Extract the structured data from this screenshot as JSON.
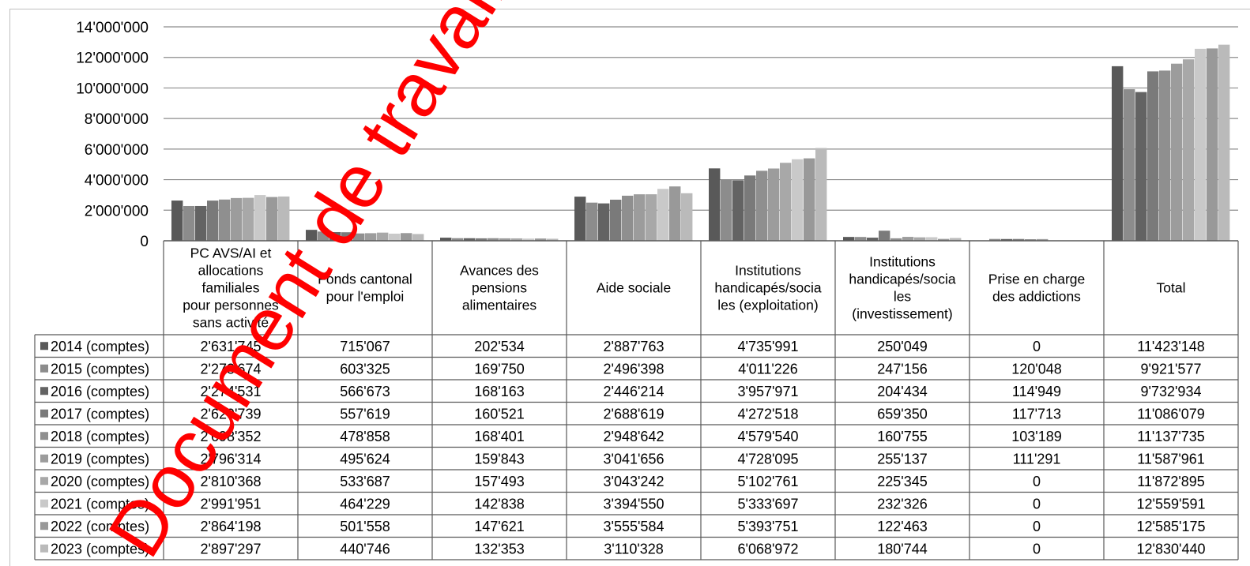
{
  "chart_data": {
    "type": "bar",
    "title": "",
    "xlabel": "",
    "ylabel": "",
    "ylim": [
      0,
      14000000
    ],
    "y_ticks": [
      "14'000'000",
      "12'000'000",
      "10'000'000",
      "8'000'000",
      "6'000'000",
      "4'000'000",
      "2'000'000",
      "0"
    ],
    "grid": true,
    "legend_placement": "left, inside data table",
    "categories": [
      [
        "PC AVS/AI et",
        "allocations",
        "familiales",
        "pour personnes",
        "sans activité"
      ],
      [
        "Fonds cantonal",
        "pour l'emploi"
      ],
      [
        "Avances des",
        "pensions",
        "alimentaires"
      ],
      [
        "Aide sociale"
      ],
      [
        "Institutions",
        "handicapés/socia",
        "les (exploitation)"
      ],
      [
        "Institutions",
        "handicapés/socia",
        "les",
        "(investissement)"
      ],
      [
        "Prise en charge",
        "des addictions"
      ],
      [
        "Total"
      ]
    ],
    "series": [
      {
        "name": "2014 (comptes)",
        "color": "#595959",
        "values": [
          2631745,
          715067,
          202534,
          2887763,
          4735991,
          250049,
          0,
          11423148
        ],
        "labels": [
          "2'631'745",
          "715'067",
          "202'534",
          "2'887'763",
          "4'735'991",
          "250'049",
          "0",
          "11'423'148"
        ]
      },
      {
        "name": "2015 (comptes)",
        "color": "#8c8c8c",
        "values": [
          2273674,
          603325,
          169750,
          2496398,
          4011226,
          247156,
          120048,
          9921577
        ],
        "labels": [
          "2'273'674",
          "603'325",
          "169'750",
          "2'496'398",
          "4'011'226",
          "247'156",
          "120'048",
          "9'921'577"
        ]
      },
      {
        "name": "2016 (comptes)",
        "color": "#636363",
        "values": [
          2274531,
          566673,
          168163,
          2446214,
          3957971,
          204434,
          114949,
          9732934
        ],
        "labels": [
          "2'274'531",
          "566'673",
          "168'163",
          "2'446'214",
          "3'957'971",
          "204'434",
          "114'949",
          "9'732'934"
        ]
      },
      {
        "name": "2017 (comptes)",
        "color": "#7a7a7a",
        "values": [
          2629739,
          557619,
          160521,
          2688619,
          4272518,
          659350,
          117713,
          11086079
        ],
        "labels": [
          "2'629'739",
          "557'619",
          "160'521",
          "2'688'619",
          "4'272'518",
          "659'350",
          "117'713",
          "11'086'079"
        ]
      },
      {
        "name": "2018 (comptes)",
        "color": "#8f8f8f",
        "values": [
          2698352,
          478858,
          168401,
          2948642,
          4579540,
          160755,
          103189,
          11137735
        ],
        "labels": [
          "2'698'352",
          "478'858",
          "168'401",
          "2'948'642",
          "4'579'540",
          "160'755",
          "103'189",
          "11'137'735"
        ]
      },
      {
        "name": "2019 (comptes)",
        "color": "#9c9c9c",
        "values": [
          2796314,
          495624,
          159843,
          3041656,
          4728095,
          255137,
          111291,
          11587961
        ],
        "labels": [
          "2'796'314",
          "495'624",
          "159'843",
          "3'041'656",
          "4'728'095",
          "255'137",
          "111'291",
          "11'587'961"
        ]
      },
      {
        "name": "2020 (comptes)",
        "color": "#a8a8a8",
        "values": [
          2810368,
          533687,
          157493,
          3043242,
          5102761,
          225345,
          0,
          11872895
        ],
        "labels": [
          "2'810'368",
          "533'687",
          "157'493",
          "3'043'242",
          "5'102'761",
          "225'345",
          "0",
          "11'872'895"
        ]
      },
      {
        "name": "2021 (comptes)",
        "color": "#c9c9c9",
        "values": [
          2991951,
          464229,
          142838,
          3394550,
          5333697,
          232326,
          0,
          12559591
        ],
        "labels": [
          "2'991'951",
          "464'229",
          "142'838",
          "3'394'550",
          "5'333'697",
          "232'326",
          "0",
          "12'559'591"
        ]
      },
      {
        "name": "2022 (comptes)",
        "color": "#999999",
        "values": [
          2864198,
          501558,
          147621,
          3555584,
          5393751,
          122463,
          0,
          12585175
        ],
        "labels": [
          "2'864'198",
          "501'558",
          "147'621",
          "3'555'584",
          "5'393'751",
          "122'463",
          "0",
          "12'585'175"
        ]
      },
      {
        "name": "2023 (comptes)",
        "color": "#bababa",
        "values": [
          2897297,
          440746,
          132353,
          3110328,
          6068972,
          180744,
          0,
          12830440
        ],
        "labels": [
          "2'897'297",
          "440'746",
          "132'353",
          "3'110'328",
          "6'068'972",
          "180'744",
          "0",
          "12'830'440"
        ]
      }
    ]
  },
  "watermark": {
    "text": "Document de travail à l'usage",
    "color": "#ff0000"
  },
  "colors": {
    "gridline": "#8c8c8c",
    "table_border": "#595959",
    "frame_border": "#bfbfbf"
  }
}
